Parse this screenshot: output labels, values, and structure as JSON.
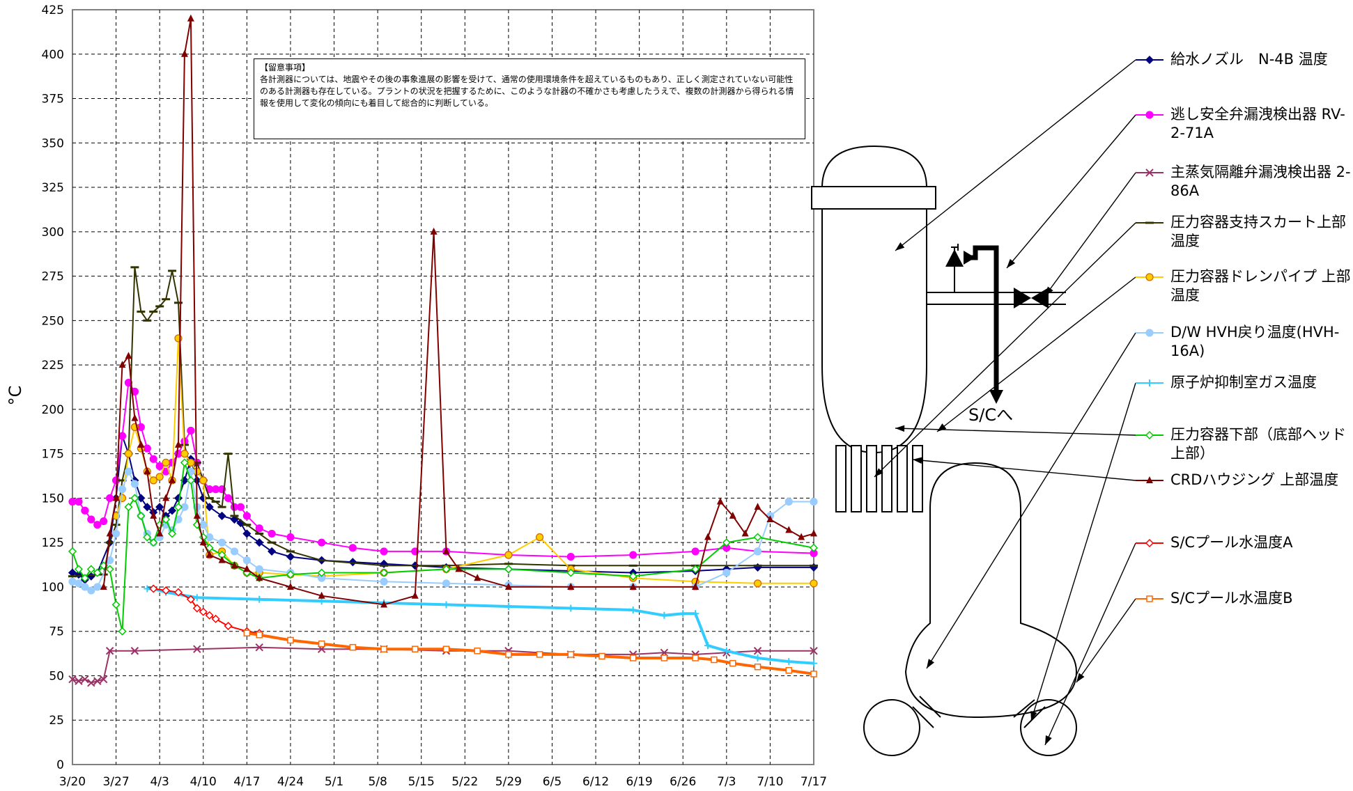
{
  "chart_data": {
    "type": "line",
    "title": "",
    "ylabel": "°C",
    "xlabel": "",
    "ylim": [
      0,
      425
    ],
    "yticks": [
      0,
      25,
      50,
      75,
      100,
      125,
      150,
      175,
      200,
      225,
      250,
      275,
      300,
      325,
      350,
      375,
      400,
      425
    ],
    "x_tick_labels": [
      "3/20",
      "3/27",
      "4/3",
      "4/10",
      "4/17",
      "4/24",
      "5/1",
      "5/8",
      "5/15",
      "5/22",
      "5/29",
      "6/5",
      "6/12",
      "6/19",
      "6/26",
      "7/3",
      "7/10",
      "7/17"
    ],
    "x_days_range": [
      0,
      119
    ],
    "grid": true,
    "legend_placement": "right",
    "note": {
      "title": "【留意事項】",
      "text": "各計測器については、地震やその後の事象進展の影響を受けて、通常の使用環境条件を超えているものもあり、正しく測定されていない可能性のある計測器も存在している。プラントの状況を把握するために、このような計器の不確かさも考慮したうえで、複数の計測器から得られる情報を使用して変化の傾向にも着目して総合的に判断している。"
    },
    "series": [
      {
        "name": "給水ノズル　N-4B 温度",
        "color": "#000080",
        "marker": "diamond",
        "x": [
          0,
          1,
          2,
          3,
          4,
          6,
          7,
          8,
          9,
          10,
          11,
          12,
          13,
          14,
          15,
          16,
          17,
          18,
          19,
          20,
          21,
          22,
          24,
          26,
          27,
          28,
          30,
          32,
          35,
          40,
          45,
          50,
          55,
          60,
          70,
          80,
          90,
          100,
          105,
          110,
          119
        ],
        "y": [
          108,
          107,
          104,
          106,
          108,
          125,
          150,
          185,
          175,
          160,
          150,
          145,
          142,
          145,
          140,
          143,
          150,
          160,
          172,
          160,
          150,
          145,
          140,
          138,
          136,
          130,
          125,
          120,
          117,
          115,
          114,
          113,
          112,
          111,
          110,
          109,
          108,
          109,
          110,
          111,
          111
        ]
      },
      {
        "name": "逃し安全弁漏洩検出器 RV-2-71A",
        "color": "#ff00ff",
        "marker": "circle",
        "x": [
          0,
          1,
          2,
          3,
          4,
          5,
          6,
          7,
          8,
          9,
          10,
          11,
          12,
          13,
          14,
          15,
          16,
          17,
          18,
          19,
          20,
          21,
          22,
          23,
          24,
          25,
          26,
          27,
          28,
          30,
          32,
          35,
          40,
          45,
          50,
          55,
          60,
          70,
          80,
          90,
          100,
          105,
          110,
          119
        ],
        "y": [
          148,
          148,
          143,
          138,
          135,
          137,
          150,
          160,
          185,
          215,
          210,
          190,
          178,
          172,
          168,
          165,
          170,
          175,
          182,
          188,
          170,
          160,
          155,
          155,
          155,
          150,
          145,
          145,
          140,
          133,
          130,
          128,
          125,
          122,
          120,
          120,
          120,
          118,
          117,
          118,
          120,
          122,
          120,
          119
        ]
      },
      {
        "name": "主蒸気隔離弁漏洩検出器 2-86A",
        "color": "#993366",
        "marker": "x",
        "x": [
          0,
          1,
          2,
          3,
          4,
          5,
          6,
          10,
          20,
          30,
          40,
          50,
          60,
          70,
          80,
          90,
          95,
          100,
          105,
          110,
          119
        ],
        "y": [
          48,
          47,
          48,
          46,
          47,
          48,
          64,
          64,
          65,
          66,
          65,
          65,
          64,
          64,
          62,
          62,
          63,
          62,
          63,
          64,
          64
        ]
      },
      {
        "name": "圧力容器支持スカート上部温度",
        "color": "#333300",
        "marker": "dash",
        "x": [
          0,
          5,
          6,
          7,
          8,
          9,
          10,
          11,
          12,
          13,
          14,
          15,
          16,
          17,
          18,
          19,
          20,
          21,
          22,
          23,
          24,
          25,
          26,
          28,
          30,
          32,
          35,
          40,
          50,
          60,
          70,
          80,
          90,
          100,
          110,
          119
        ],
        "y": [
          106,
          107,
          125,
          135,
          160,
          175,
          280,
          255,
          250,
          255,
          258,
          262,
          278,
          260,
          180,
          165,
          170,
          160,
          150,
          148,
          145,
          175,
          140,
          135,
          130,
          125,
          120,
          115,
          112,
          112,
          113,
          112,
          112,
          112,
          112,
          112
        ]
      },
      {
        "name": "圧力容器ドレンパイプ 上部温度",
        "color": "#ffcc00",
        "marker": "circle",
        "x": [
          7,
          8,
          9,
          10,
          11,
          12,
          13,
          14,
          15,
          16,
          17,
          18,
          19,
          20,
          21,
          22,
          24,
          26,
          28,
          30,
          35,
          40,
          50,
          60,
          70,
          75,
          80,
          90,
          100,
          110,
          119
        ],
        "y": [
          140,
          150,
          175,
          190,
          178,
          165,
          160,
          162,
          170,
          160,
          240,
          175,
          170,
          165,
          160,
          118,
          120,
          112,
          108,
          108,
          107,
          106,
          108,
          110,
          118,
          128,
          110,
          105,
          103,
          102,
          102
        ]
      },
      {
        "name": "D/W HVH戻り温度(HVH-16A)",
        "color": "#99ccff",
        "marker": "circle",
        "x": [
          0,
          1,
          2,
          3,
          4,
          6,
          7,
          8,
          9,
          10,
          11,
          12,
          13,
          14,
          15,
          16,
          17,
          18,
          19,
          20,
          21,
          22,
          24,
          26,
          28,
          30,
          35,
          40,
          50,
          60,
          70,
          80,
          90,
          100,
          105,
          110,
          112,
          115,
          119
        ],
        "y": [
          103,
          102,
          100,
          98,
          100,
          115,
          130,
          155,
          165,
          158,
          140,
          130,
          125,
          128,
          135,
          132,
          138,
          145,
          165,
          145,
          135,
          128,
          125,
          120,
          115,
          110,
          108,
          105,
          103,
          102,
          101,
          100,
          100,
          100,
          108,
          120,
          140,
          148,
          148
        ]
      },
      {
        "name": "原子炉抑制室ガス温度",
        "color": "#33ccff",
        "marker": "plus",
        "x": [
          12,
          13,
          15,
          20,
          30,
          40,
          50,
          60,
          70,
          80,
          90,
          95,
          98,
          100,
          102,
          105,
          110,
          115,
          119
        ],
        "y": [
          99,
          99,
          97,
          94,
          93,
          92,
          91,
          90,
          89,
          88,
          87,
          84,
          85,
          85,
          67,
          64,
          60,
          58,
          57
        ]
      },
      {
        "name": "圧力容器下部（底部ヘッド上部）",
        "color": "#00cc00",
        "marker": "diamond",
        "x": [
          0,
          1,
          2,
          3,
          4,
          5,
          6,
          7,
          8,
          9,
          10,
          11,
          12,
          13,
          14,
          15,
          16,
          17,
          18,
          19,
          20,
          21,
          22,
          24,
          26,
          28,
          30,
          35,
          40,
          50,
          60,
          70,
          80,
          90,
          100,
          105,
          110,
          119
        ],
        "y": [
          120,
          110,
          105,
          110,
          108,
          112,
          110,
          90,
          75,
          145,
          150,
          140,
          128,
          125,
          135,
          138,
          130,
          145,
          170,
          160,
          135,
          128,
          122,
          118,
          112,
          108,
          105,
          107,
          108,
          108,
          110,
          110,
          108,
          106,
          110,
          125,
          128,
          122
        ]
      },
      {
        "name": "CRDハウジング 上部温度",
        "color": "#800000",
        "marker": "triangle",
        "x": [
          5,
          6,
          7,
          8,
          9,
          10,
          11,
          12,
          13,
          14,
          15,
          16,
          17,
          18,
          19,
          20,
          21,
          22,
          24,
          26,
          28,
          30,
          35,
          40,
          50,
          55,
          58,
          60,
          62,
          65,
          70,
          80,
          90,
          100,
          102,
          104,
          106,
          108,
          110,
          112,
          115,
          117,
          119
        ],
        "y": [
          100,
          130,
          150,
          225,
          230,
          195,
          180,
          165,
          140,
          130,
          150,
          160,
          180,
          400,
          420,
          140,
          125,
          118,
          115,
          112,
          110,
          105,
          100,
          95,
          90,
          95,
          300,
          120,
          110,
          105,
          100,
          100,
          100,
          100,
          128,
          148,
          140,
          130,
          145,
          138,
          132,
          128,
          130
        ]
      },
      {
        "name": "S/Cプール水温度A",
        "color": "#ff0000",
        "marker": "diamond",
        "x": [
          13,
          15,
          17,
          19,
          20,
          21,
          22,
          23,
          25,
          28,
          30
        ],
        "y": [
          99,
          98,
          97,
          93,
          88,
          86,
          84,
          82,
          78,
          75,
          74
        ]
      },
      {
        "name": "S/Cプール水温度B",
        "color": "#ff6600",
        "marker": "square",
        "x": [
          28,
          30,
          35,
          40,
          45,
          50,
          55,
          60,
          65,
          70,
          75,
          80,
          85,
          90,
          95,
          100,
          103,
          106,
          110,
          115,
          119
        ],
        "y": [
          74,
          73,
          70,
          68,
          66,
          65,
          65,
          65,
          64,
          62,
          62,
          62,
          61,
          60,
          60,
          60,
          59,
          57,
          55,
          53,
          51
        ]
      }
    ]
  },
  "diagram": {
    "sc_label": "S/Cへ"
  },
  "colors": {
    "grid": "#000000",
    "plot_border": "#808080",
    "background": "#ffffff"
  }
}
